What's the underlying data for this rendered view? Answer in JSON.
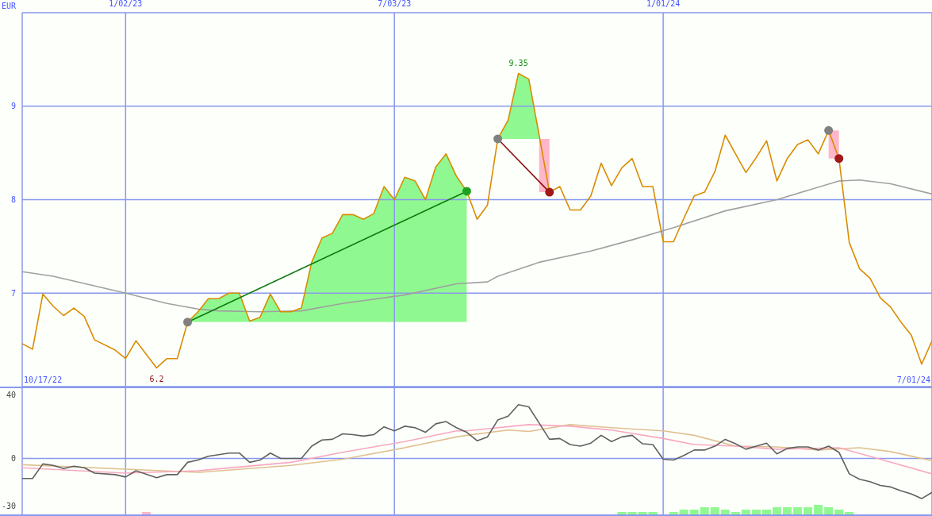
{
  "chart_data": [
    {
      "type": "line",
      "ylabel": "EUR",
      "xlim": [
        "2022-10-24",
        "2024-07-01"
      ],
      "xticks": [
        {
          "value": "2023-01-02",
          "label": "1/02/23"
        },
        {
          "value": "2023-07-03",
          "label": "7/03/23"
        },
        {
          "value": "2024-01-01",
          "label": "1/01/24"
        }
      ],
      "ylim": [
        6,
        10
      ],
      "yticks": [
        7,
        8,
        9
      ],
      "grid": true,
      "marker": "none",
      "annotations": [
        {
          "text": "6.2",
          "x": "2023-01-23",
          "y": 6.2
        },
        {
          "text": "9.35",
          "x": "2023-09-25",
          "y": 9.35
        },
        "10/17/22",
        "7/01/24"
      ],
      "series": [
        {
          "color": "#a0a0a0",
          "x": [
            "2022-10-24",
            "2022-11-14",
            "2023-01-02",
            "2023-01-30",
            "2023-02-20",
            "2023-03-06",
            "2023-04-03",
            "2023-05-01",
            "2023-05-29",
            "2023-07-10",
            "2023-08-14",
            "2023-09-04",
            "2023-09-11",
            "2023-10-09",
            "2023-11-13",
            "2023-12-11",
            "2024-01-08",
            "2024-02-12",
            "2024-03-18",
            "2024-04-29",
            "2024-05-13",
            "2024-06-03",
            "2024-07-01"
          ],
          "values": [
            7.23,
            7.18,
            7.0,
            6.89,
            6.83,
            6.81,
            6.8,
            6.81,
            6.89,
            6.98,
            7.1,
            7.12,
            7.18,
            7.33,
            7.45,
            7.57,
            7.7,
            7.88,
            8.0,
            8.2,
            8.21,
            8.17,
            8.06
          ]
        },
        {
          "color": "#d98c00",
          "x": [
            "2022-10-24",
            "2022-10-31",
            "2022-11-07",
            "2022-11-14",
            "2022-11-21",
            "2022-11-28",
            "2022-12-05",
            "2022-12-12",
            "2022-12-26",
            "2023-01-02",
            "2023-01-09",
            "2023-01-23",
            "2023-01-30",
            "2023-02-06",
            "2023-02-13",
            "2023-02-20",
            "2023-02-27",
            "2023-03-06",
            "2023-03-13",
            "2023-03-20",
            "2023-03-27",
            "2023-04-03",
            "2023-04-10",
            "2023-04-17",
            "2023-04-24",
            "2023-05-01",
            "2023-05-08",
            "2023-05-15",
            "2023-05-22",
            "2023-05-29",
            "2023-06-05",
            "2023-06-12",
            "2023-06-19",
            "2023-06-26",
            "2023-07-03",
            "2023-07-10",
            "2023-07-17",
            "2023-07-24",
            "2023-07-31",
            "2023-08-07",
            "2023-08-14",
            "2023-08-21",
            "2023-08-28",
            "2023-09-04",
            "2023-09-11",
            "2023-09-18",
            "2023-09-25",
            "2023-10-02",
            "2023-10-09",
            "2023-10-16",
            "2023-10-23",
            "2023-10-30",
            "2023-11-06",
            "2023-11-13",
            "2023-11-20",
            "2023-11-27",
            "2023-12-04",
            "2023-12-11",
            "2023-12-18",
            "2023-12-25",
            "2024-01-01",
            "2024-01-08",
            "2024-01-15",
            "2024-01-22",
            "2024-01-29",
            "2024-02-05",
            "2024-02-12",
            "2024-02-19",
            "2024-02-26",
            "2024-03-04",
            "2024-03-11",
            "2024-03-18",
            "2024-03-25",
            "2024-04-01",
            "2024-04-08",
            "2024-04-15",
            "2024-04-22",
            "2024-04-29",
            "2024-05-06",
            "2024-05-13",
            "2024-05-20",
            "2024-05-27",
            "2024-06-03",
            "2024-06-10",
            "2024-06-17",
            "2024-06-24",
            "2024-07-01"
          ],
          "values": [
            6.46,
            6.4,
            6.99,
            6.86,
            6.76,
            6.84,
            6.75,
            6.5,
            6.39,
            6.3,
            6.49,
            6.2,
            6.3,
            6.3,
            6.69,
            6.8,
            6.94,
            6.94,
            7.0,
            7.0,
            6.7,
            6.74,
            6.99,
            6.8,
            6.8,
            6.84,
            7.33,
            7.59,
            7.64,
            7.84,
            7.84,
            7.79,
            7.85,
            8.14,
            8.0,
            8.24,
            8.2,
            8.0,
            8.35,
            8.49,
            8.25,
            8.09,
            7.79,
            7.94,
            8.65,
            8.85,
            9.35,
            9.29,
            8.69,
            8.08,
            8.14,
            7.89,
            7.89,
            8.04,
            8.39,
            8.15,
            8.34,
            8.44,
            8.14,
            8.14,
            7.55,
            7.55,
            7.8,
            8.04,
            8.08,
            8.3,
            8.69,
            8.49,
            8.29,
            8.45,
            8.63,
            8.2,
            8.44,
            8.59,
            8.64,
            8.49,
            8.74,
            8.44,
            7.54,
            7.26,
            7.16,
            6.95,
            6.85,
            6.69,
            6.55,
            6.24,
            6.49
          ]
        },
        {
          "color": "#0a7a0a",
          "x": [
            "2023-02-13",
            "2023-08-21"
          ],
          "values": [
            6.69,
            8.09
          ]
        },
        {
          "color": "#8b1010",
          "x": [
            "2023-09-11",
            "2023-10-16"
          ],
          "values": [
            8.65,
            8.08
          ]
        },
        {
          "type": "scatter",
          "marker": "circle",
          "x": [
            "2023-02-13",
            "2023-08-21",
            "2023-09-11",
            "2023-10-16",
            "2024-04-22",
            "2024-04-29"
          ],
          "values": [
            6.69,
            8.09,
            8.65,
            8.08,
            8.74,
            8.44
          ],
          "colors": [
            "#808080",
            "#20a020",
            "#808080",
            "#a01818",
            "#808080",
            "#a01818"
          ]
        }
      ]
    },
    {
      "type": "line",
      "xlim": [
        "2022-10-24",
        "2024-07-01"
      ],
      "xticks": [
        {
          "value": "2023-01-02",
          "label": null
        },
        {
          "value": "2023-07-03",
          "label": null
        },
        {
          "value": "2024-01-01",
          "label": null
        }
      ],
      "ylim": [
        -35,
        44
      ],
      "yticks": [
        40,
        0,
        -30
      ],
      "tick_labels": "y",
      "grid": "x",
      "marker": "none",
      "ref_lines": [
        {
          "axis": "y",
          "value": 0,
          "color": "#8899ee"
        }
      ],
      "series": [
        {
          "type": "bar",
          "x": [
            "2023-01-16",
            "2023-12-04",
            "2023-12-11",
            "2023-12-18",
            "2023-12-25",
            "2024-01-08",
            "2024-01-15",
            "2024-01-22",
            "2024-01-29",
            "2024-02-05",
            "2024-02-12",
            "2024-02-19",
            "2024-02-26",
            "2024-03-04",
            "2024-03-11",
            "2024-03-18",
            "2024-03-25",
            "2024-04-01",
            "2024-04-08",
            "2024-04-15",
            "2024-04-22",
            "2024-04-29",
            "2024-05-06"
          ],
          "base": [
            -35,
            -35,
            -35,
            -35,
            -35,
            -35,
            -35,
            -35,
            -35,
            -35,
            -35,
            -35,
            -35,
            -35,
            -35,
            -35,
            -35,
            -35,
            -35,
            -35,
            -35,
            -35,
            -35
          ],
          "values": [
            1.5,
            1.5,
            1.5,
            1.5,
            1.5,
            1.5,
            3,
            3,
            4.5,
            4.5,
            3,
            1.5,
            3,
            3,
            3,
            4.5,
            4.5,
            4.5,
            4.5,
            6,
            4.5,
            3,
            1.5
          ],
          "colors": [
            "#ffb6c8",
            "#90f890",
            "#90f890",
            "#90f890",
            "#90f890",
            "#90f890",
            "#90f890",
            "#90f890",
            "#90f890",
            "#90f890",
            "#90f890",
            "#90f890",
            "#90f890",
            "#90f890",
            "#90f890",
            "#90f890",
            "#90f890",
            "#90f890",
            "#90f890",
            "#90f890",
            "#90f890",
            "#90f890",
            "#90f890"
          ]
        },
        {
          "color": "#e0c090",
          "x": [
            "2022-10-24",
            "2023-01-02",
            "2023-02-20",
            "2023-04-24",
            "2023-05-29",
            "2023-07-10",
            "2023-08-14",
            "2023-08-21",
            "2023-09-18",
            "2023-10-02",
            "2023-10-30",
            "2023-11-27",
            "2024-01-01",
            "2024-01-22",
            "2024-02-19",
            "2024-03-18",
            "2024-04-15",
            "2024-05-13",
            "2024-06-03",
            "2024-07-01"
          ],
          "values": [
            -3.9,
            -6.7,
            -8.7,
            -4.3,
            -0.5,
            6.7,
            13.5,
            14.5,
            17.8,
            16.9,
            21.2,
            19.3,
            17.3,
            14.5,
            7.7,
            7.2,
            5.3,
            6.7,
            4.3,
            -1.4
          ]
        },
        {
          "color": "#f8a8c0",
          "x": [
            "2022-10-24",
            "2023-01-02",
            "2023-02-20",
            "2023-04-24",
            "2023-05-29",
            "2023-07-10",
            "2023-08-14",
            "2023-08-21",
            "2023-10-02",
            "2023-10-30",
            "2023-11-27",
            "2024-01-01",
            "2024-01-22",
            "2024-02-19",
            "2024-03-18",
            "2024-04-29",
            "2024-05-27",
            "2024-07-01"
          ],
          "values": [
            -5.8,
            -9.2,
            -7.7,
            -2.4,
            3.9,
            10.6,
            17.3,
            17.3,
            21.2,
            20.2,
            17.8,
            12.5,
            8.7,
            7.7,
            5.8,
            6.7,
            -0.5,
            -9.6
          ]
        },
        {
          "color": "#606060",
          "x": [
            "2022-10-24",
            "2022-10-31",
            "2022-11-07",
            "2022-11-14",
            "2022-11-21",
            "2022-11-28",
            "2022-12-05",
            "2022-12-12",
            "2022-12-26",
            "2023-01-02",
            "2023-01-09",
            "2023-01-23",
            "2023-01-30",
            "2023-02-06",
            "2023-02-13",
            "2023-02-20",
            "2023-02-27",
            "2023-03-13",
            "2023-03-20",
            "2023-03-27",
            "2023-04-03",
            "2023-04-10",
            "2023-04-17",
            "2023-05-01",
            "2023-05-08",
            "2023-05-15",
            "2023-05-22",
            "2023-05-29",
            "2023-06-05",
            "2023-06-12",
            "2023-06-19",
            "2023-06-26",
            "2023-07-03",
            "2023-07-10",
            "2023-07-17",
            "2023-07-24",
            "2023-07-31",
            "2023-08-07",
            "2023-08-14",
            "2023-08-21",
            "2023-08-28",
            "2023-09-04",
            "2023-09-11",
            "2023-09-18",
            "2023-09-25",
            "2023-10-02",
            "2023-10-09",
            "2023-10-16",
            "2023-10-23",
            "2023-10-30",
            "2023-11-06",
            "2023-11-13",
            "2023-11-20",
            "2023-11-27",
            "2023-12-04",
            "2023-12-11",
            "2023-12-18",
            "2023-12-25",
            "2024-01-01",
            "2024-01-08",
            "2024-01-15",
            "2024-01-22",
            "2024-01-29",
            "2024-02-05",
            "2024-02-12",
            "2024-02-19",
            "2024-02-26",
            "2024-03-04",
            "2024-03-11",
            "2024-03-18",
            "2024-03-25",
            "2024-04-01",
            "2024-04-08",
            "2024-04-15",
            "2024-04-22",
            "2024-04-29",
            "2024-05-06",
            "2024-05-13",
            "2024-05-20",
            "2024-05-27",
            "2024-06-03",
            "2024-06-10",
            "2024-06-17",
            "2024-06-24",
            "2024-07-01"
          ],
          "values": [
            -12.5,
            -12.5,
            -3.4,
            -4.3,
            -6.3,
            -4.8,
            -5.8,
            -9.2,
            -10.1,
            -11.6,
            -7.7,
            -12.0,
            -10.1,
            -10.1,
            -2.4,
            -1.0,
            1.4,
            3.4,
            3.4,
            -2.4,
            -1.0,
            3.4,
            0,
            0,
            7.7,
            11.6,
            12.0,
            15.4,
            14.9,
            14.0,
            14.9,
            19.8,
            17.3,
            20.2,
            19.3,
            16.4,
            21.7,
            23.1,
            19.3,
            16.4,
            11.1,
            13.5,
            24.1,
            26.5,
            33.7,
            32.3,
            22.2,
            12.0,
            12.5,
            8.7,
            7.7,
            9.6,
            14.5,
            10.6,
            13.5,
            14.5,
            9.2,
            8.7,
            -0.5,
            -1.0,
            1.9,
            5.3,
            5.3,
            7.7,
            12.0,
            9.2,
            5.8,
            7.7,
            9.6,
            2.9,
            6.3,
            7.2,
            7.2,
            5.3,
            7.7,
            3.9,
            -9.6,
            -13.0,
            -14.5,
            -16.9,
            -17.8,
            -20.2,
            -22.2,
            -25.1,
            -21.2
          ]
        }
      ]
    }
  ]
}
